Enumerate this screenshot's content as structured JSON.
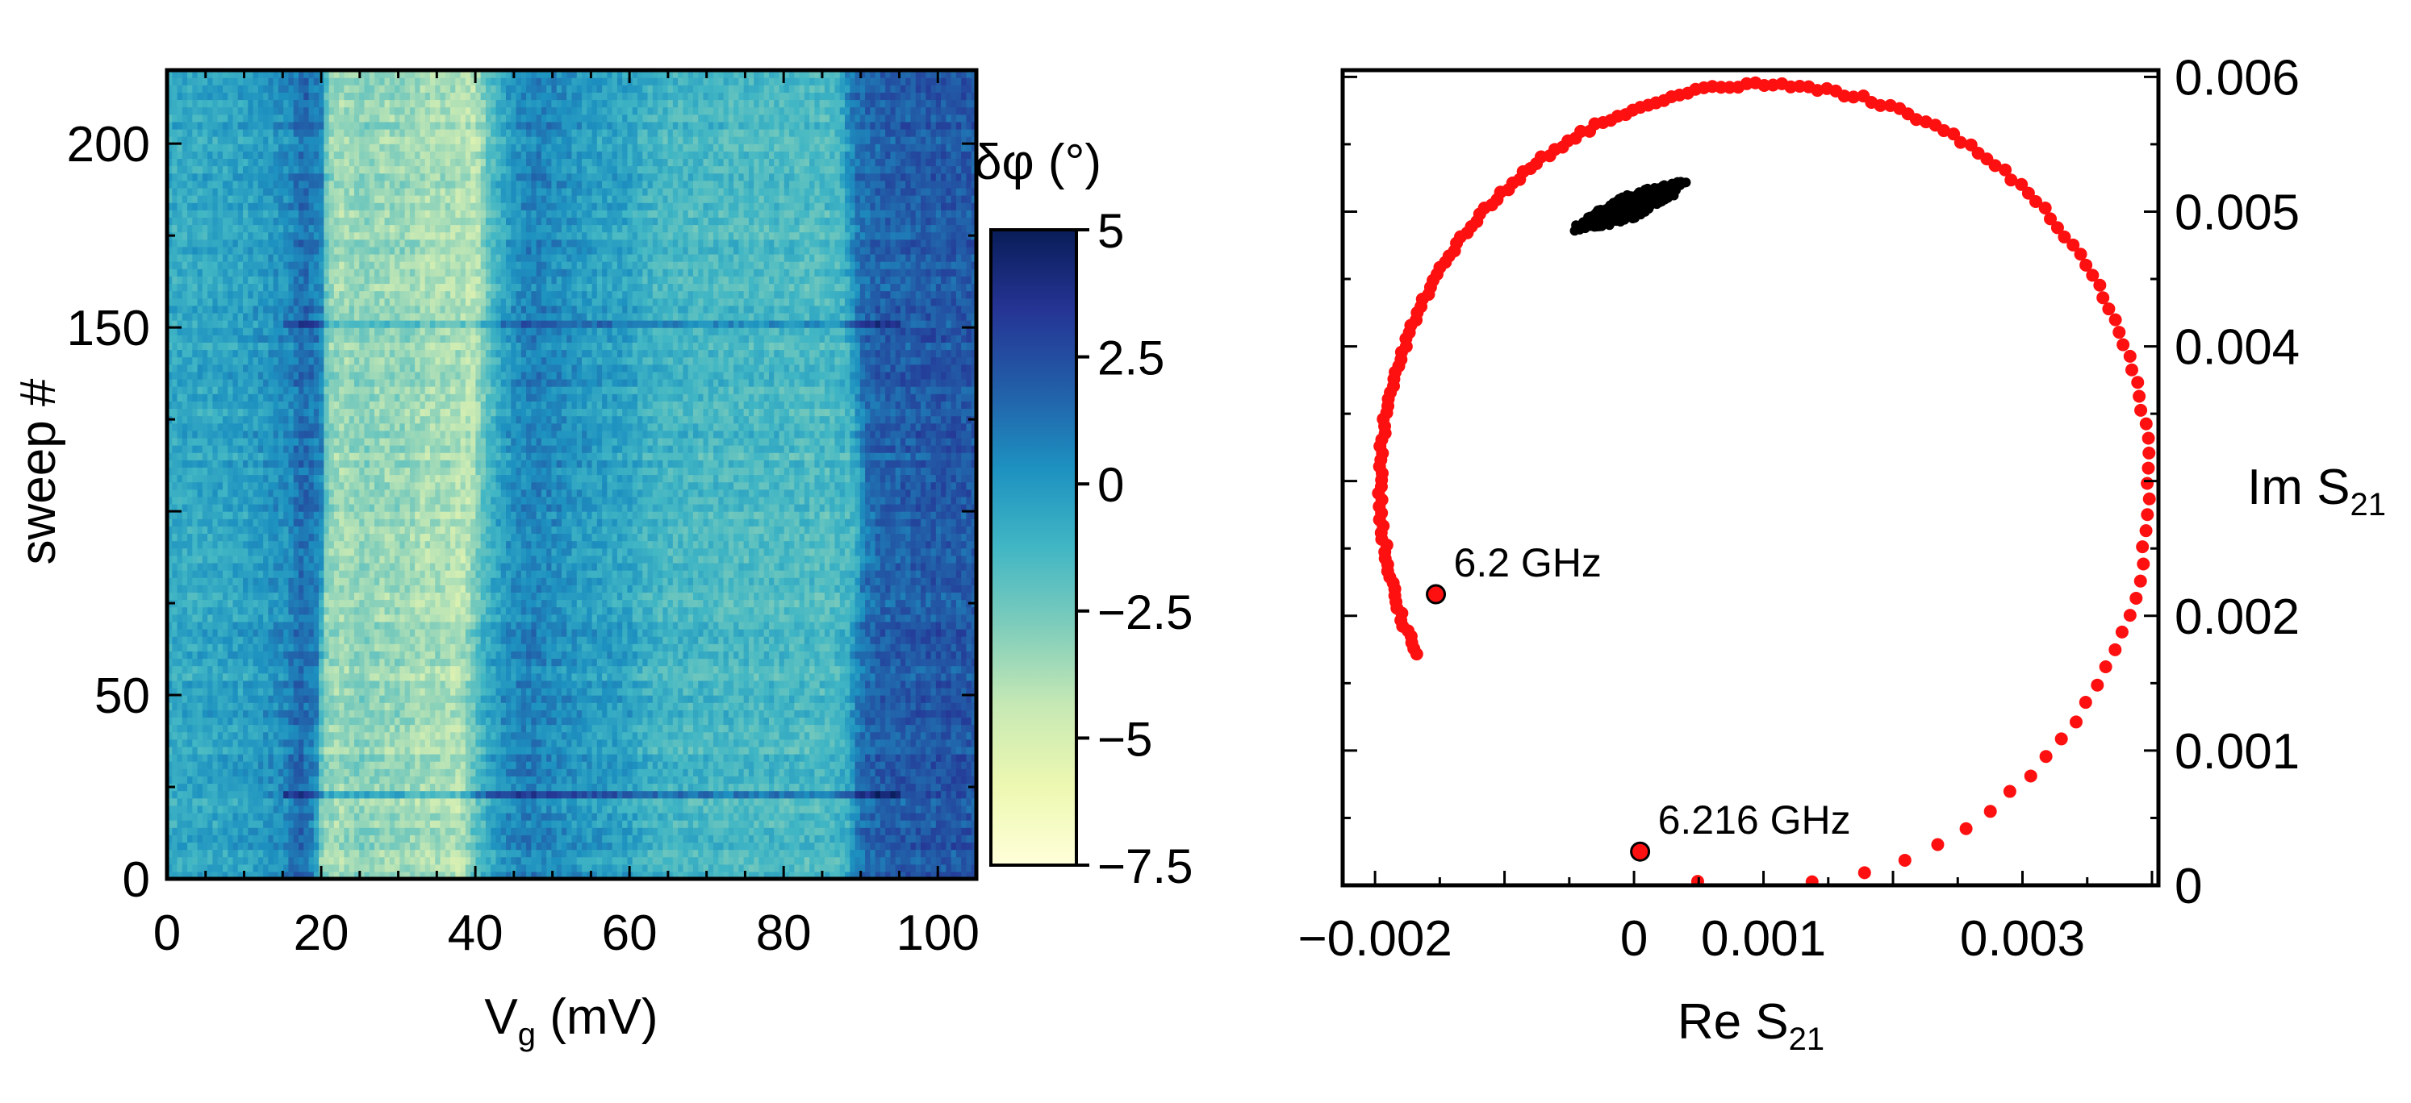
{
  "chart_data": [
    {
      "type": "heatmap",
      "xlabel": "V",
      "xlabel_sub": "g",
      "xlabel_unit": " (mV)",
      "ylabel": "sweep #",
      "xlim": [
        0,
        105
      ],
      "ylim": [
        0,
        220
      ],
      "xticks": [
        0,
        20,
        40,
        60,
        80,
        100
      ],
      "xtick_labels": [
        "0",
        "20",
        "40",
        "60",
        "80",
        "100"
      ],
      "yticks": [
        0,
        50,
        150,
        200
      ],
      "ytick_labels": [
        "0",
        "50",
        "150",
        "200"
      ],
      "colorbar": {
        "label": "δφ (°)",
        "range": [
          -7.5,
          5
        ],
        "ticks": [
          5,
          2.5,
          0,
          -2.5,
          -5,
          -7.5
        ],
        "tick_labels": [
          "5",
          "2.5",
          "0",
          "−2.5",
          "−5",
          "−7.5"
        ],
        "colormap": [
          "#ffffd9",
          "#edf8b1",
          "#c7e9b4",
          "#7fcdbb",
          "#41b6c4",
          "#1d91c0",
          "#225ea8",
          "#253494",
          "#081d58"
        ]
      },
      "phase_profile": {
        "v": [
          0,
          10,
          15,
          17,
          19,
          20,
          22,
          25,
          28,
          30,
          33,
          35,
          38,
          40,
          42,
          44,
          47,
          50,
          55,
          60,
          62,
          65,
          70,
          75,
          80,
          85,
          88,
          90,
          92,
          95,
          100,
          105
        ],
        "dphi": [
          -0.8,
          -0.4,
          0.4,
          1.6,
          0.6,
          -3.0,
          -3.6,
          -3.0,
          -3.4,
          -3.2,
          -3.8,
          -3.6,
          -4.2,
          -2.0,
          -0.6,
          0.3,
          0.8,
          0.4,
          -0.2,
          -0.5,
          -1.0,
          -1.3,
          -1.4,
          -1.5,
          -1.5,
          -1.6,
          -1.2,
          1.3,
          1.8,
          2.0,
          2.2,
          2.1
        ]
      },
      "edge_drift": [
        {
          "name": "left",
          "sweeps": [
            0,
            60,
            100,
            140,
            180,
            220
          ],
          "v": [
            20,
            20.5,
            21,
            21,
            21,
            21
          ]
        },
        {
          "name": "central",
          "sweeps": [
            0,
            60,
            100,
            140,
            180,
            220
          ],
          "v": [
            40,
            40,
            41,
            42,
            42,
            42
          ]
        },
        {
          "name": "right",
          "sweeps": [
            0,
            60,
            90,
            110,
            150,
            220
          ],
          "v": [
            88,
            88,
            89,
            89,
            88,
            87
          ]
        }
      ],
      "glitch_sweeps": [
        23,
        151
      ]
    },
    {
      "type": "scatter",
      "xlabel": "Re S",
      "xlabel_sub": "21",
      "ylabel": "Im S",
      "ylabel_sub": "21",
      "xlim": [
        -0.00225,
        0.00405
      ],
      "ylim": [
        0,
        0.00605
      ],
      "xticks": [
        -0.002,
        0,
        0.001,
        0.003
      ],
      "xtick_labels": [
        "−0.002",
        "0",
        "0.001",
        "0.003"
      ],
      "yticks": [
        0,
        0.001,
        0.002,
        0.004,
        0.005,
        0.006
      ],
      "ytick_labels": [
        "0",
        "0.001",
        "0.002",
        "0.004",
        "0.005",
        "0.006"
      ],
      "circle": {
        "center": [
          0.00101,
          0.00297
        ],
        "radius": 0.00297
      },
      "series": [
        {
          "color": "#ff1010",
          "angle_range_deg": [
            -100,
            205
          ],
          "note_count": 190
        },
        {
          "color": "#000000",
          "cluster_center": [
            -3e-05,
            0.00504
          ],
          "cluster_extent": [
            -0.00045,
            0.00055
          ]
        }
      ],
      "annotations": [
        {
          "label": "6.2 GHz",
          "x": -0.00153,
          "y": 0.00216
        },
        {
          "label": "6.216 GHz",
          "x": 4.7e-05,
          "y": 0.00025
        }
      ]
    }
  ]
}
